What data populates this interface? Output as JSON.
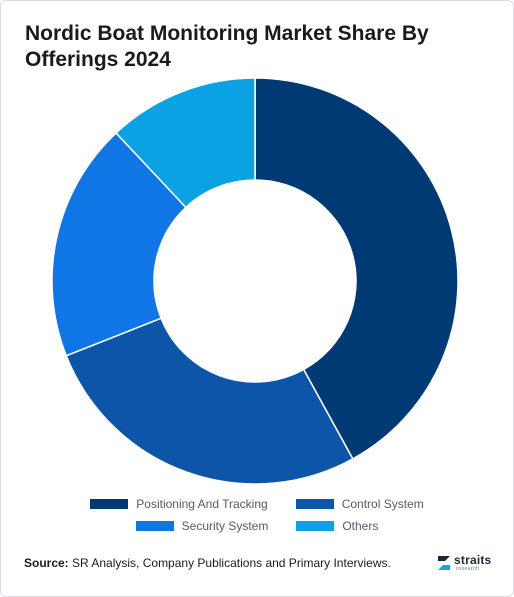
{
  "chart_data": {
    "type": "pie",
    "donut": true,
    "title": "Nordic Boat Monitoring Market Share By Offerings 2024",
    "categories": [
      "Positioning And Tracking",
      "Control System",
      "Security System",
      "Others"
    ],
    "values": [
      42,
      27,
      19,
      12
    ],
    "colors": [
      "#003a75",
      "#0d55a8",
      "#1076e6",
      "#0aa2e2"
    ],
    "legend_position": "bottom"
  },
  "source": {
    "label": "Source:",
    "text": "SR Analysis, Company Publications and Primary Interviews."
  },
  "logo": {
    "word": "straits",
    "sub": "research"
  }
}
